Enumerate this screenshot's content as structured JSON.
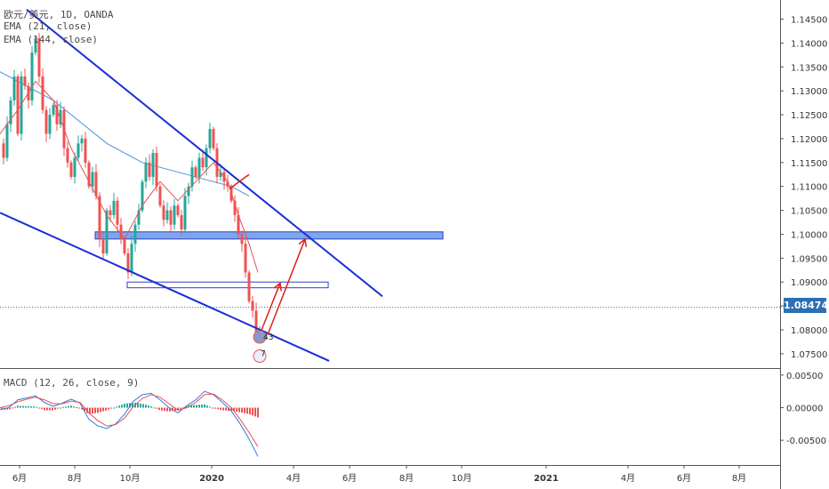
{
  "legend": {
    "symbol": "欧元/美元, 1D, OANDA",
    "ema_fast": "EMA (21, close)",
    "ema_slow": "EMA (144, close)",
    "macd": "MACD (12, 26, close, 9)"
  },
  "last_price": "1.08474",
  "colors": {
    "up": "#26a69a",
    "down": "#ef5350",
    "ema_fast": "#e8504a",
    "ema_slow": "#4a90d9",
    "channel": "#1a2ed6",
    "zone_fill": "#7fa6e8",
    "arrow": "#e0201b",
    "macd_line": "#2f7fe0",
    "signal_line": "#e8504a",
    "price_tag": "#2c6fb3"
  },
  "chart_data": [
    {
      "type": "candlestick",
      "title": "欧元/美元, 1D, OANDA",
      "y_ticks": [
        "1.14500",
        "1.14000",
        "1.13500",
        "1.13000",
        "1.12500",
        "1.12000",
        "1.11500",
        "1.11000",
        "1.10500",
        "1.10000",
        "1.09500",
        "1.09000",
        "1.08500",
        "1.08000",
        "1.07500"
      ],
      "y_range": [
        1.072,
        1.149
      ],
      "x_ticks": [
        "6月",
        "8月",
        "10月",
        "2020",
        "4月",
        "6月",
        "8月",
        "10月",
        "2021",
        "4月",
        "6月",
        "8月"
      ],
      "ema_labels": [
        "EMA (21, close)",
        "EMA (144, close)"
      ],
      "price_path": [
        [
          0,
          1.119
        ],
        [
          4,
          1.116
        ],
        [
          8,
          1.123
        ],
        [
          12,
          1.128
        ],
        [
          16,
          1.133
        ],
        [
          20,
          1.121
        ],
        [
          24,
          1.133
        ],
        [
          28,
          1.131
        ],
        [
          32,
          1.128
        ],
        [
          36,
          1.138
        ],
        [
          40,
          1.141
        ],
        [
          44,
          1.133
        ],
        [
          48,
          1.126
        ],
        [
          52,
          1.121
        ],
        [
          56,
          1.125
        ],
        [
          60,
          1.127
        ],
        [
          64,
          1.123
        ],
        [
          68,
          1.126
        ],
        [
          72,
          1.118
        ],
        [
          76,
          1.115
        ],
        [
          80,
          1.112
        ],
        [
          84,
          1.116
        ],
        [
          88,
          1.119
        ],
        [
          92,
          1.12
        ],
        [
          96,
          1.115
        ],
        [
          100,
          1.11
        ],
        [
          104,
          1.113
        ],
        [
          108,
          1.108
        ],
        [
          112,
          1.099
        ],
        [
          116,
          1.096
        ],
        [
          120,
          1.105
        ],
        [
          124,
          1.104
        ],
        [
          128,
          1.107
        ],
        [
          132,
          1.102
        ],
        [
          136,
          1.099
        ],
        [
          140,
          1.096
        ],
        [
          144,
          1.092
        ],
        [
          148,
          1.098
        ],
        [
          152,
          1.102
        ],
        [
          156,
          1.105
        ],
        [
          160,
          1.111
        ],
        [
          164,
          1.115
        ],
        [
          168,
          1.112
        ],
        [
          172,
          1.117
        ],
        [
          176,
          1.11
        ],
        [
          180,
          1.106
        ],
        [
          184,
          1.103
        ],
        [
          188,
          1.105
        ],
        [
          192,
          1.102
        ],
        [
          196,
          1.106
        ],
        [
          200,
          1.104
        ],
        [
          204,
          1.101
        ],
        [
          208,
          1.108
        ],
        [
          212,
          1.11
        ],
        [
          216,
          1.114
        ],
        [
          220,
          1.112
        ],
        [
          224,
          1.116
        ],
        [
          228,
          1.114
        ],
        [
          232,
          1.118
        ],
        [
          236,
          1.122
        ],
        [
          240,
          1.118
        ],
        [
          244,
          1.112
        ],
        [
          248,
          1.113
        ],
        [
          252,
          1.111
        ],
        [
          256,
          1.11
        ],
        [
          260,
          1.107
        ],
        [
          264,
          1.104
        ],
        [
          268,
          1.1
        ],
        [
          272,
          1.098
        ],
        [
          276,
          1.092
        ],
        [
          280,
          1.086
        ],
        [
          284,
          1.084
        ],
        [
          288,
          1.079
        ],
        [
          292,
          1.08
        ]
      ],
      "ema_fast_path": [
        [
          0,
          1.121
        ],
        [
          20,
          1.126
        ],
        [
          40,
          1.132
        ],
        [
          60,
          1.128
        ],
        [
          80,
          1.118
        ],
        [
          100,
          1.111
        ],
        [
          120,
          1.104
        ],
        [
          140,
          1.099
        ],
        [
          160,
          1.106
        ],
        [
          180,
          1.111
        ],
        [
          200,
          1.107
        ],
        [
          220,
          1.111
        ],
        [
          240,
          1.115
        ],
        [
          256,
          1.111
        ],
        [
          268,
          1.104
        ],
        [
          280,
          1.098
        ],
        [
          290,
          1.092
        ]
      ],
      "ema_slow_path": [
        [
          0,
          1.134
        ],
        [
          20,
          1.132
        ],
        [
          40,
          1.13
        ],
        [
          60,
          1.128
        ],
        [
          80,
          1.125
        ],
        [
          100,
          1.122
        ],
        [
          120,
          1.119
        ],
        [
          140,
          1.117
        ],
        [
          160,
          1.115
        ],
        [
          180,
          1.114
        ],
        [
          200,
          1.113
        ],
        [
          220,
          1.112
        ],
        [
          240,
          1.111
        ],
        [
          260,
          1.11
        ],
        [
          280,
          1.108
        ]
      ],
      "channel_upper": [
        [
          30,
          1.147
        ],
        [
          430,
          1.087
        ]
      ],
      "channel_lower": [
        [
          0,
          1.1045
        ],
        [
          370,
          1.0735
        ]
      ],
      "zones": [
        {
          "x0": 107,
          "x1": 498,
          "y0": 1.1005,
          "y1": 1.099,
          "filled": true
        },
        {
          "x0": 143,
          "x1": 369,
          "y0": 1.09,
          "y1": 1.0888,
          "filled": false
        }
      ],
      "arrows": [
        [
          [
            292,
            1.079
          ],
          [
            315,
            1.0898
          ]
        ],
        [
          [
            301,
            1.079
          ],
          [
            343,
            1.099
          ]
        ]
      ],
      "small_labels": [
        "43",
        "7"
      ]
    },
    {
      "type": "macd",
      "title": "MACD (12, 26, close, 9)",
      "y_ticks": [
        "0.00500",
        "0.00000",
        "-0.00500"
      ],
      "y_range": [
        -0.0088,
        0.0058
      ],
      "macd_path": [
        [
          0,
          -0.0003
        ],
        [
          10,
          0.0
        ],
        [
          20,
          0.0012
        ],
        [
          30,
          0.0015
        ],
        [
          40,
          0.0018
        ],
        [
          50,
          0.0008
        ],
        [
          60,
          0.0002
        ],
        [
          70,
          0.0007
        ],
        [
          80,
          0.0013
        ],
        [
          90,
          0.0007
        ],
        [
          100,
          -0.0018
        ],
        [
          110,
          -0.0028
        ],
        [
          120,
          -0.0032
        ],
        [
          130,
          -0.0025
        ],
        [
          140,
          -0.001
        ],
        [
          150,
          0.001
        ],
        [
          160,
          0.002
        ],
        [
          170,
          0.0022
        ],
        [
          180,
          0.0012
        ],
        [
          190,
          0.0
        ],
        [
          200,
          -0.0008
        ],
        [
          210,
          0.0003
        ],
        [
          220,
          0.0012
        ],
        [
          230,
          0.0025
        ],
        [
          240,
          0.002
        ],
        [
          250,
          0.0008
        ],
        [
          260,
          -0.0005
        ],
        [
          270,
          -0.0025
        ],
        [
          280,
          -0.0048
        ],
        [
          290,
          -0.0075
        ]
      ],
      "signal_path": [
        [
          0,
          0.0
        ],
        [
          10,
          0.0003
        ],
        [
          20,
          0.0009
        ],
        [
          30,
          0.0013
        ],
        [
          40,
          0.0016
        ],
        [
          50,
          0.0012
        ],
        [
          60,
          0.0006
        ],
        [
          70,
          0.0006
        ],
        [
          80,
          0.001
        ],
        [
          90,
          0.0008
        ],
        [
          100,
          -0.0008
        ],
        [
          110,
          -0.002
        ],
        [
          120,
          -0.0028
        ],
        [
          130,
          -0.0026
        ],
        [
          140,
          -0.0016
        ],
        [
          150,
          0.0002
        ],
        [
          160,
          0.0014
        ],
        [
          170,
          0.002
        ],
        [
          180,
          0.0016
        ],
        [
          190,
          0.0006
        ],
        [
          200,
          -0.0004
        ],
        [
          210,
          0.0
        ],
        [
          220,
          0.0008
        ],
        [
          230,
          0.002
        ],
        [
          240,
          0.0021
        ],
        [
          250,
          0.0012
        ],
        [
          260,
          0.0
        ],
        [
          270,
          -0.0018
        ],
        [
          280,
          -0.0038
        ],
        [
          290,
          -0.006
        ]
      ]
    }
  ]
}
